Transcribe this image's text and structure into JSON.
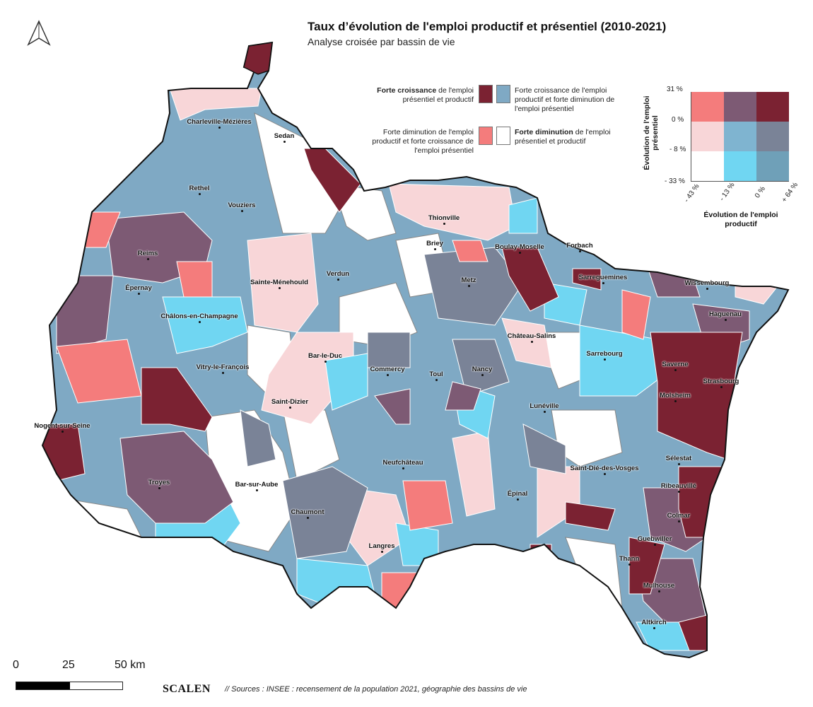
{
  "title": "Taux d’évolution de l'emploi productif et présentiel (2010-2021)",
  "subtitle": "Analyse croisée par bassin de vie",
  "legend": {
    "items": [
      {
        "bold": "Forte croissance",
        "text": " de l'emploi présentiel et productif",
        "color": "#7b2232"
      },
      {
        "bold": "",
        "text": "Forte croissance de l'emploi productif et forte diminution de l'emploi présentiel",
        "color": "#7fa9c4"
      },
      {
        "bold": "",
        "text": "Forte diminution de l'emploi productif et forte croissance de l'emploi présentiel",
        "color": "#f47c7c"
      },
      {
        "bold": "Forte diminution",
        "text": " de l'emploi présentiel et productif",
        "color": "#ffffff"
      }
    ]
  },
  "bivariate": {
    "y_label": "Évolution de l'emploi présentiel",
    "x_label_1": "Évolution de l'emploi",
    "x_label_2": "productif",
    "y_ticks": [
      "31 %",
      "0 %",
      "- 8 %",
      "- 33 %"
    ],
    "x_ticks": [
      "- 43 %",
      "- 13 %",
      "0 %",
      "+ 64 %"
    ],
    "grid_colors": [
      [
        "#f47c7c",
        "#7d5a74",
        "#7b2232"
      ],
      [
        "#f8d6d8",
        "#7fb4d0",
        "#7a8397"
      ],
      [
        "#ffffff",
        "#70d6f2",
        "#6fa0b8"
      ]
    ]
  },
  "cities": [
    "Charleville-Mézières",
    "Sedan",
    "Rethel",
    "Vouziers",
    "Reims",
    "Thionville",
    "Briey",
    "Boulay-Moselle",
    "Forbach",
    "Sarreguemines",
    "Wissembourg",
    "Verdun",
    "Sainte-Ménehould",
    "Épernay",
    "Châlons-en-Champagne",
    "Metz",
    "Haguenau",
    "Château-Salins",
    "Sarrebourg",
    "Saverne",
    "Strasbourg",
    "Bar-le-Duc",
    "Commercy",
    "Toul",
    "Nancy",
    "Vitry-le-François",
    "Saint-Dizier",
    "Lunéville",
    "Molsheim",
    "Nogent-sur-Seine",
    "Troyes",
    "Bar-sur-Aube",
    "Neufchâteau",
    "Saint-Dié-des-Vosges",
    "Sélestat",
    "Ribeauvillé",
    "Épinal",
    "Colmar",
    "Chaumont",
    "Guebwiller",
    "Langres",
    "Thann",
    "Mulhouse",
    "Altkirch"
  ],
  "scale": {
    "ticks": [
      "0",
      "25",
      "50 km"
    ]
  },
  "footer": {
    "logo": "SCALEN",
    "source": "// Sources : INSEE : recensement de la population 2021, géographie des bassins de vie"
  }
}
